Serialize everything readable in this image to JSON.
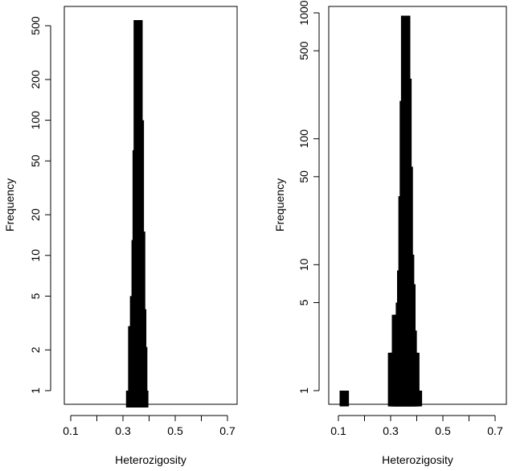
{
  "chart_data": [
    {
      "type": "bar",
      "title": "",
      "xlabel": "Heterozigosity",
      "ylabel": "Frequency",
      "xlim": [
        0.1,
        0.7
      ],
      "y_scale": "log",
      "ylim": [
        0.7,
        700
      ],
      "x_ticks": [
        0.1,
        0.2,
        0.3,
        0.4,
        0.5,
        0.6,
        0.7
      ],
      "x_tick_labels": [
        "0.1",
        "0.3",
        "0.5",
        "0.7"
      ],
      "y_ticks": [
        1,
        2,
        5,
        10,
        20,
        50,
        100,
        200,
        500
      ],
      "y_tick_labels": [
        "1",
        "2",
        "5",
        "10",
        "20",
        "50",
        "100",
        "200",
        "500"
      ],
      "bars": [
        {
          "x": 0.327,
          "y": 1
        },
        {
          "x": 0.332,
          "y": 1
        },
        {
          "x": 0.335,
          "y": 3
        },
        {
          "x": 0.342,
          "y": 5
        },
        {
          "x": 0.348,
          "y": 13
        },
        {
          "x": 0.352,
          "y": 60
        },
        {
          "x": 0.356,
          "y": 550
        },
        {
          "x": 0.36,
          "y": 550
        },
        {
          "x": 0.365,
          "y": 100
        },
        {
          "x": 0.37,
          "y": 15
        },
        {
          "x": 0.374,
          "y": 4
        },
        {
          "x": 0.378,
          "y": 2.1
        },
        {
          "x": 0.382,
          "y": 1
        }
      ]
    },
    {
      "type": "bar",
      "title": "",
      "xlabel": "Heterozigosity",
      "ylabel": "Frequency",
      "xlim": [
        0.1,
        0.7
      ],
      "y_scale": "log",
      "ylim": [
        0.7,
        1200
      ],
      "x_ticks": [
        0.1,
        0.2,
        0.3,
        0.4,
        0.5,
        0.6,
        0.7
      ],
      "x_tick_labels": [
        "0.1",
        "0.3",
        "0.5",
        "0.7"
      ],
      "y_ticks": [
        1,
        5,
        10,
        50,
        100,
        500,
        1000
      ],
      "y_tick_labels": [
        "1",
        "5",
        "10",
        "50",
        "100",
        "500",
        "1000"
      ],
      "bars": [
        {
          "x": 0.12,
          "y": 1
        },
        {
          "x": 0.125,
          "y": 1
        },
        {
          "x": 0.305,
          "y": 2
        },
        {
          "x": 0.31,
          "y": 2
        },
        {
          "x": 0.315,
          "y": 2
        },
        {
          "x": 0.32,
          "y": 4
        },
        {
          "x": 0.325,
          "y": 4
        },
        {
          "x": 0.33,
          "y": 4
        },
        {
          "x": 0.335,
          "y": 5
        },
        {
          "x": 0.34,
          "y": 9
        },
        {
          "x": 0.345,
          "y": 35
        },
        {
          "x": 0.35,
          "y": 200
        },
        {
          "x": 0.355,
          "y": 950
        },
        {
          "x": 0.36,
          "y": 950
        },
        {
          "x": 0.365,
          "y": 300
        },
        {
          "x": 0.37,
          "y": 60
        },
        {
          "x": 0.375,
          "y": 12
        },
        {
          "x": 0.38,
          "y": 7
        },
        {
          "x": 0.385,
          "y": 3
        },
        {
          "x": 0.39,
          "y": 2
        },
        {
          "x": 0.395,
          "y": 2
        },
        {
          "x": 0.4,
          "y": 1
        },
        {
          "x": 0.405,
          "y": 1
        }
      ]
    }
  ]
}
